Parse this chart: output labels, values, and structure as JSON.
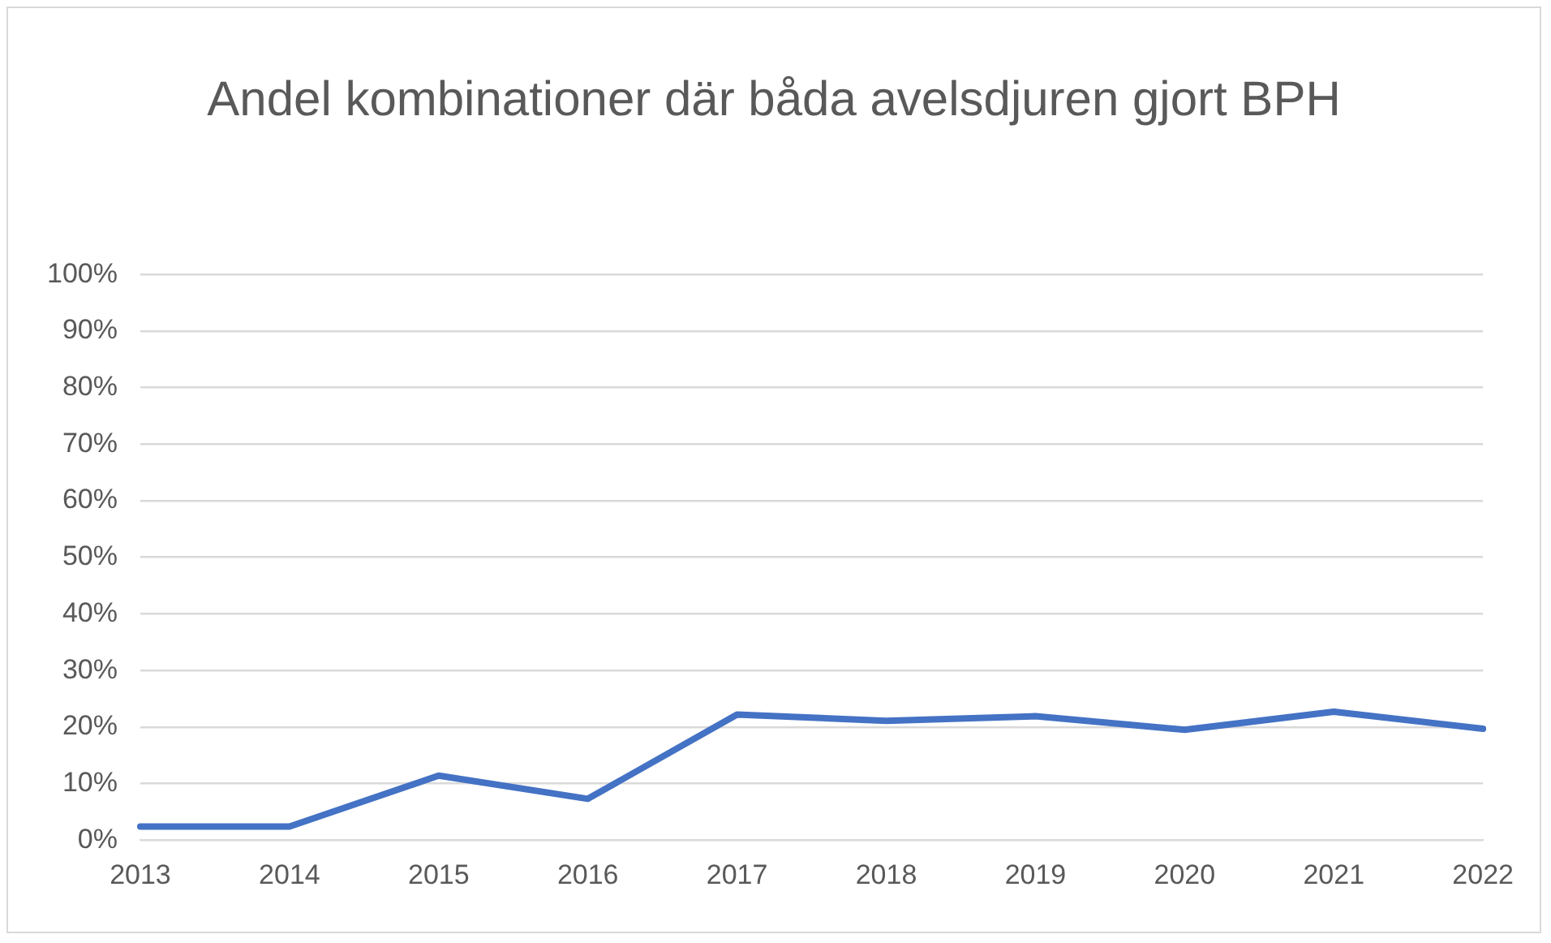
{
  "chart_data": {
    "type": "line",
    "title": "Andel kombinationer där båda avelsdjuren gjort BPH",
    "categories": [
      "2013",
      "2014",
      "2015",
      "2016",
      "2017",
      "2018",
      "2019",
      "2020",
      "2021",
      "2022"
    ],
    "series": [
      {
        "color": "#4472c4",
        "values": [
          2.4,
          2.4,
          11.4,
          7.3,
          22.2,
          21.1,
          21.9,
          19.5,
          22.7,
          19.7
        ]
      }
    ],
    "ylim": [
      0,
      100
    ],
    "yticks": [
      {
        "value": 0,
        "label": "0%"
      },
      {
        "value": 10,
        "label": "10%"
      },
      {
        "value": 20,
        "label": "20%"
      },
      {
        "value": 30,
        "label": "30%"
      },
      {
        "value": 40,
        "label": "40%"
      },
      {
        "value": 50,
        "label": "50%"
      },
      {
        "value": 60,
        "label": "60%"
      },
      {
        "value": 70,
        "label": "70%"
      },
      {
        "value": 80,
        "label": "80%"
      },
      {
        "value": 90,
        "label": "90%"
      },
      {
        "value": 100,
        "label": "100%"
      }
    ],
    "grid": "y",
    "legend": false,
    "marker": "none",
    "line_style": "solid"
  }
}
